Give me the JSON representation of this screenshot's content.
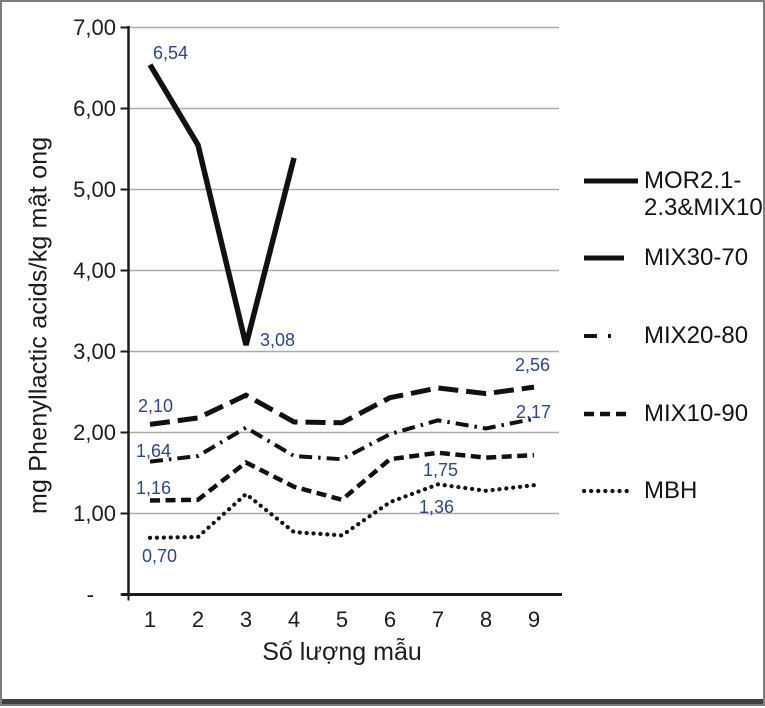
{
  "figure": {
    "y_axis_title": "mg Phenyllactic acids/kg mật ong",
    "x_axis_title": "Số lượng mẫu"
  },
  "chart_data": {
    "type": "line",
    "title": "",
    "xlabel": "Số lượng mẫu",
    "ylabel": "mg Phenyllactic acids/kg mật ong",
    "x": [
      1,
      2,
      3,
      4,
      5,
      6,
      7,
      8,
      9
    ],
    "ylim": [
      0,
      7
    ],
    "y_ticks": [
      "7,00",
      "6,00",
      "5,00",
      "4,00",
      "3,00",
      "2,00",
      "1,00",
      "-"
    ],
    "y_tick_values": [
      7,
      6,
      5,
      4,
      3,
      2,
      1,
      0
    ],
    "grid": "horizontal",
    "legend_position": "right",
    "series": [
      {
        "name": "MOR2.1-2.3&MIX10",
        "line_style": "solid",
        "values": [
          6.54,
          5.55,
          3.08,
          5.39,
          null,
          null,
          null,
          null,
          null
        ]
      },
      {
        "name": "MIX30-70",
        "line_style": "long-dash",
        "values": [
          2.1,
          2.18,
          2.46,
          2.13,
          2.12,
          2.43,
          2.55,
          2.48,
          2.56
        ]
      },
      {
        "name": "MIX20-80",
        "line_style": "dash-dot",
        "values": [
          1.64,
          1.71,
          2.06,
          1.71,
          1.67,
          1.98,
          2.15,
          2.05,
          2.17
        ]
      },
      {
        "name": "MIX10-90",
        "line_style": "dash",
        "values": [
          1.16,
          1.17,
          1.63,
          1.33,
          1.17,
          1.67,
          1.75,
          1.69,
          1.72
        ]
      },
      {
        "name": "MBH",
        "line_style": "dotted",
        "values": [
          0.7,
          0.71,
          1.24,
          0.77,
          0.73,
          1.14,
          1.36,
          1.28,
          1.35
        ]
      }
    ],
    "data_labels": [
      {
        "text": "6,54",
        "series": "MOR2.1-2.3&MIX10",
        "x": 1
      },
      {
        "text": "3,08",
        "series": "MOR2.1-2.3&MIX10",
        "x": 3
      },
      {
        "text": "2,10",
        "series": "MIX30-70",
        "x": 1
      },
      {
        "text": "2,56",
        "series": "MIX30-70",
        "x": 9
      },
      {
        "text": "1,64",
        "series": "MIX20-80",
        "x": 1
      },
      {
        "text": "2,17",
        "series": "MIX20-80",
        "x": 9
      },
      {
        "text": "1,16",
        "series": "MIX10-90",
        "x": 1
      },
      {
        "text": "1,75",
        "series": "MIX10-90",
        "x": 7
      },
      {
        "text": "0,70",
        "series": "MBH",
        "x": 1
      },
      {
        "text": "1,36",
        "series": "MBH",
        "x": 7
      }
    ]
  },
  "legend": {
    "items": [
      {
        "label": "MOR2.1-2.3&MIX10",
        "lines": [
          "MOR2.1-",
          "2.3&MIX10"
        ],
        "style": "solid"
      },
      {
        "label": "MIX30-70",
        "lines": [
          "MIX30-70"
        ],
        "style": "long-dash"
      },
      {
        "label": "MIX20-80",
        "lines": [
          "MIX20-80"
        ],
        "style": "dash-dot"
      },
      {
        "label": "MIX10-90",
        "lines": [
          "MIX10-90"
        ],
        "style": "dash"
      },
      {
        "label": "MBH",
        "lines": [
          "MBH"
        ],
        "style": "dotted"
      }
    ]
  },
  "colors": {
    "line": "#111111",
    "gridline": "#aaaaaa",
    "axis": "#1a1a1a",
    "data_label": "#32457c",
    "axis_text": "#1c1c1c",
    "border": "#7d7d7d",
    "bottom_bar": "#3f3f3f"
  }
}
